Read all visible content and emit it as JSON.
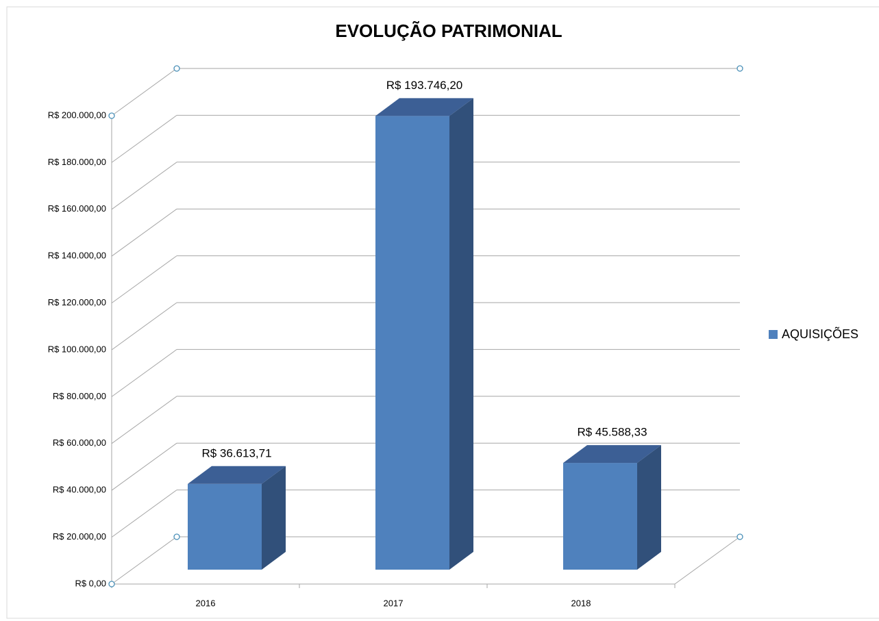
{
  "chart_data": {
    "type": "bar3d",
    "title": "EVOLUÇÃO PATRIMONIAL",
    "categories": [
      "2016",
      "2017",
      "2018"
    ],
    "series": [
      {
        "name": "AQUISIÇÕES",
        "color": "#4f81bd",
        "values": [
          36613.71,
          193746.2,
          45588.33
        ],
        "value_labels": [
          "R$ 36.613,71",
          "R$ 193.746,20",
          "R$ 45.588,33"
        ]
      }
    ],
    "ylim": [
      0,
      200000
    ],
    "yticks": [
      {
        "value": 0,
        "label": "R$ 0,00"
      },
      {
        "value": 20000,
        "label": "R$ 20.000,00"
      },
      {
        "value": 40000,
        "label": "R$ 40.000,00"
      },
      {
        "value": 60000,
        "label": "R$ 60.000,00"
      },
      {
        "value": 80000,
        "label": "R$ 80.000,00"
      },
      {
        "value": 100000,
        "label": "R$ 100.000,00"
      },
      {
        "value": 120000,
        "label": "R$ 120.000,00"
      },
      {
        "value": 140000,
        "label": "R$ 140.000,00"
      },
      {
        "value": 160000,
        "label": "R$ 160.000,00"
      },
      {
        "value": 180000,
        "label": "R$ 180.000,00"
      },
      {
        "value": 200000,
        "label": "R$ 200.000,00"
      }
    ],
    "grid": true,
    "legend": "right"
  }
}
